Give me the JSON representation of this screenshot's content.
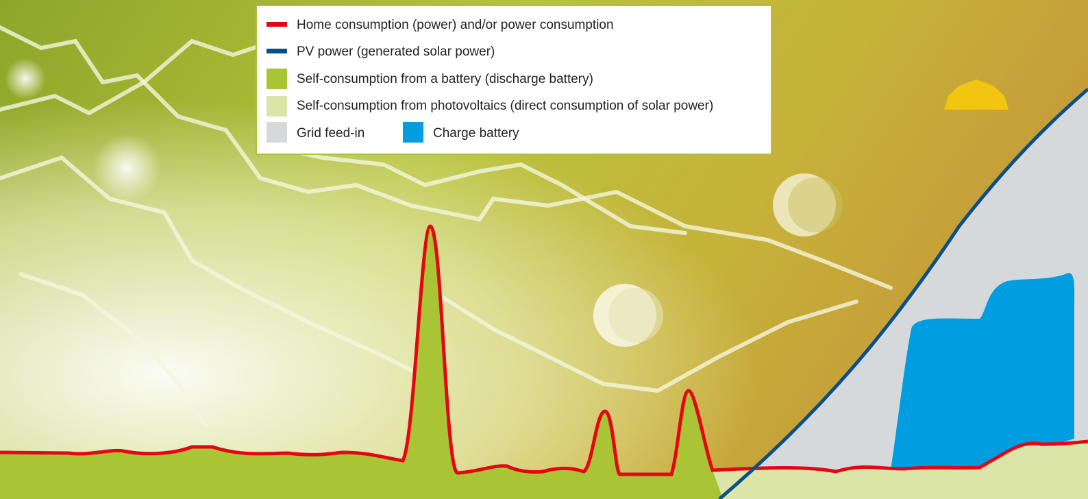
{
  "legend": {
    "items": [
      {
        "label": "Home consumption (power) and/or power consumption"
      },
      {
        "label": "PV power (generated solar power)"
      },
      {
        "label": "Self-consumption from a battery (discharge battery)"
      },
      {
        "label": "Self-consumption from photovoltaics (direct consumption of solar power)"
      },
      {
        "label": "Grid feed-in"
      },
      {
        "label": "Charge battery"
      }
    ]
  }
}
